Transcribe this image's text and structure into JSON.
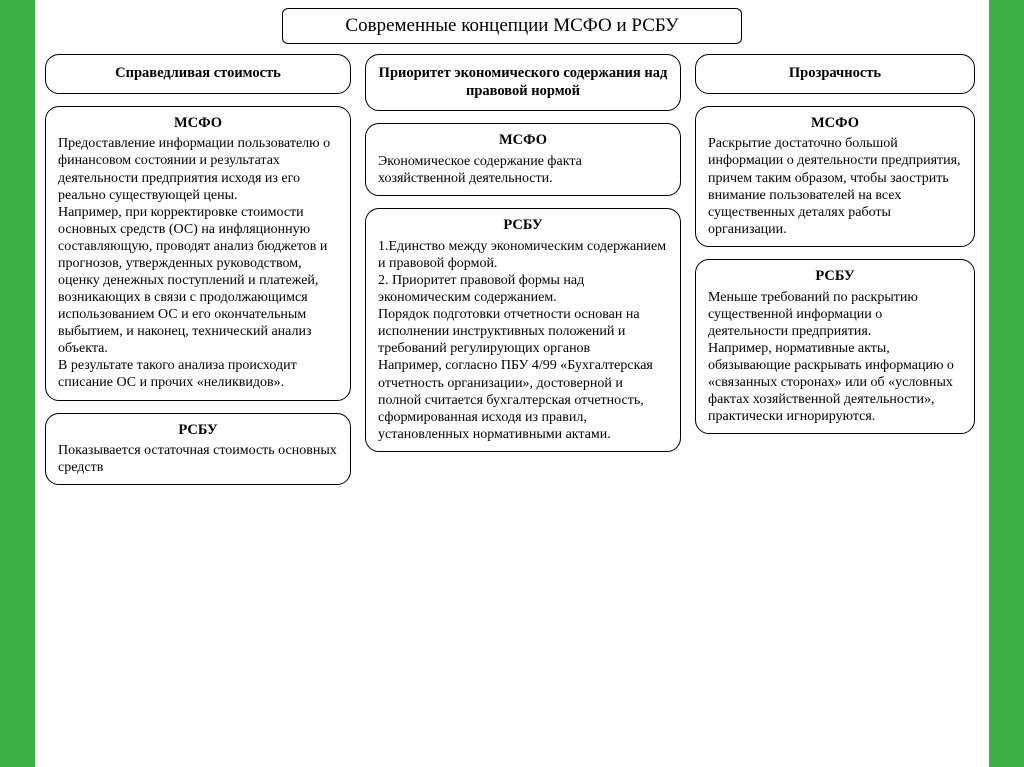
{
  "layout": {
    "type": "infographic",
    "background_color": "#3cb043",
    "canvas_color": "#ffffff",
    "border_color": "#000000",
    "font_family": "Times New Roman, serif",
    "title_fontsize": 19,
    "header_fontweight": "bold",
    "body_fontsize": 14,
    "border_radius": 14,
    "columns": 3
  },
  "title": "Современные концепции МСФО и РСБУ",
  "col1": {
    "header": "Справедливая стоимость",
    "msfo_title": "МСФО",
    "msfo_text": "Предоставление информации пользователю о финансовом состоянии и результатах деятельности предприятия исходя из его реально существующей цены.\nНапример, при корректировке стоимости основных средств (ОС) на инфляционную составляющую, проводят анализ бюджетов и прогнозов, утвержденных руководством, оценку денежных поступлений и платежей, возникающих в связи с продолжающимся использованием ОС и его окончательным выбытием, и наконец, технический анализ объекта.\nВ результате такого анализа происходит списание  ОС и прочих «неликвидов».",
    "rsbu_title": "РСБУ",
    "rsbu_text": "Показывается остаточная стоимость основных средств"
  },
  "col2": {
    "header": "Приоритет экономического содержания над правовой нормой",
    "msfo_title": "МСФО",
    "msfo_text": "Экономическое содержание факта хозяйственной деятельности.",
    "rsbu_title": "РСБУ",
    "rsbu_text": "1.Единство между экономическим содержанием и правовой формой.\n2. Приоритет правовой формы над экономическим содержанием.\nПорядок подготовки отчетности основан на исполнении инструктивных положений и требований регулирующих органов\nНапример, согласно ПБУ 4/99 «Бухгалтерская отчетность организации», достоверной и полной считается бухгалтерская отчетность,  сформированная исходя из правил, установленных нормативными актами."
  },
  "col3": {
    "header": "Прозрачность",
    "msfo_title": "МСФО",
    "msfo_text": "Раскрытие достаточно большой информации о деятельности предприятия,\nпричем таким образом, чтобы заострить внимание пользователей на всех существенных деталях работы организации.",
    "rsbu_title": "РСБУ",
    "rsbu_text": "Меньше требований по раскрытию существенной информации о деятельности предприятия.\nНапример, нормативные акты, обязывающие раскрывать информацию о\n«связанных сторонах» или об «условных фактах хозяйственной деятельности», практически игнорируются."
  }
}
